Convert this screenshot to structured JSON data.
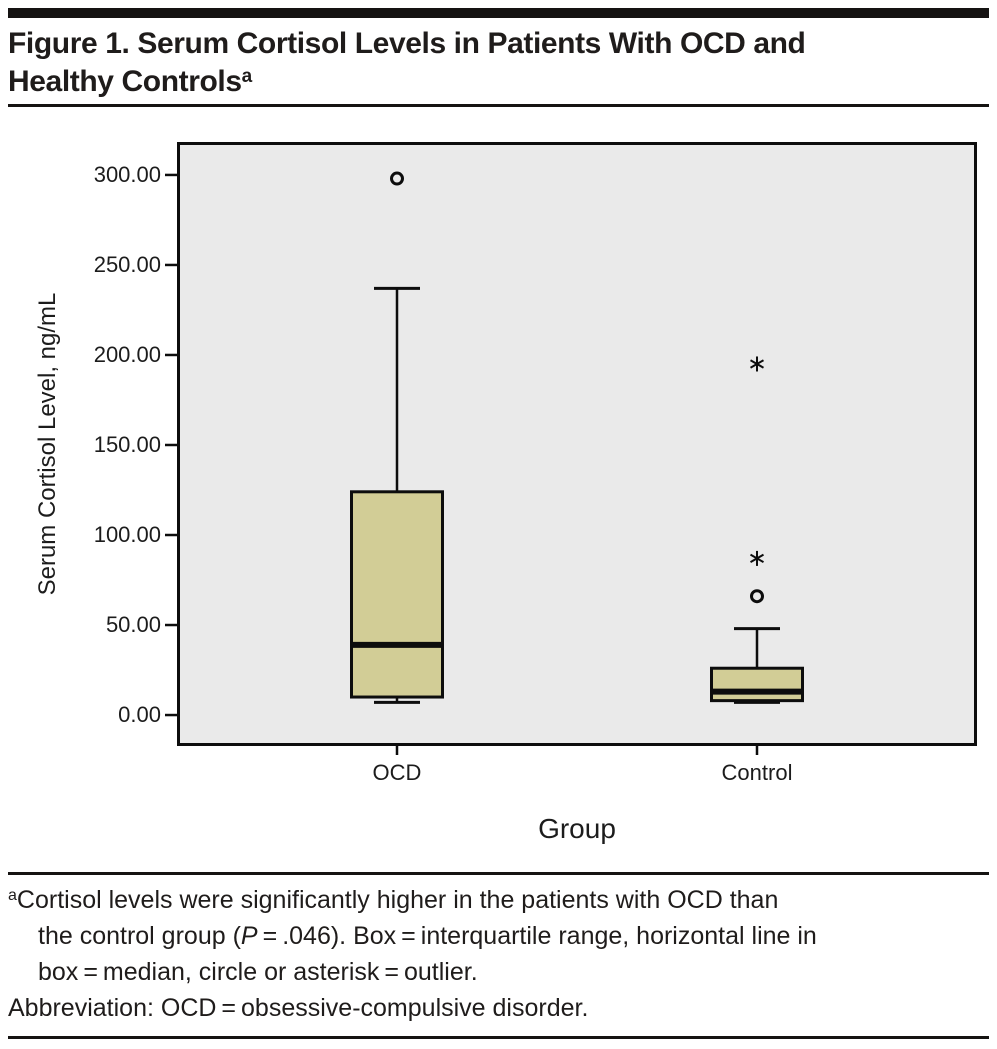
{
  "title": {
    "line1": "Figure 1. Serum Cortisol Levels in Patients With OCD and",
    "line2_text": "Healthy Controls",
    "line2_sup": "a"
  },
  "chart_data": {
    "type": "boxplot",
    "xlabel": "Group",
    "ylabel": "Serum Cortisol Level, ng/mL",
    "ylim": [
      -17.2,
      318.3
    ],
    "grid": "off",
    "yticks": [
      {
        "value": 300,
        "label": "300.00"
      },
      {
        "value": 250,
        "label": "250.00"
      },
      {
        "value": 200,
        "label": "200.00"
      },
      {
        "value": 150,
        "label": "150.00"
      },
      {
        "value": 100,
        "label": "100.00"
      },
      {
        "value": 50,
        "label": "50.00"
      },
      {
        "value": 0,
        "label": "0.00"
      }
    ],
    "categories": [
      "OCD",
      "Control"
    ],
    "series": [
      {
        "name": "OCD",
        "center_frac": 0.275,
        "whisker_low": 7,
        "q1": 10,
        "median": 39,
        "q3": 124,
        "whisker_high": 237,
        "outliers": [
          {
            "marker": "circle",
            "value": 298
          }
        ]
      },
      {
        "name": "Control",
        "center_frac": 0.725,
        "whisker_low": 7,
        "q1": 8,
        "median": 13,
        "q3": 26,
        "whisker_high": 48,
        "outliers": [
          {
            "marker": "asterisk",
            "value": 195
          },
          {
            "marker": "asterisk",
            "value": 87
          },
          {
            "marker": "circle",
            "value": 66
          }
        ]
      }
    ],
    "colors": {
      "box_fill": "#d2cd96",
      "stroke": "#0d0d0d",
      "plot_bg": "#eaeaea",
      "text": "#1c1c1c"
    }
  },
  "footnote": {
    "l1": {
      "sup": "a",
      "text": "Cortisol levels were significantly higher in the patients with OCD than"
    },
    "l2": {
      "pre": "the control group (",
      "italic": "P",
      "post": " = .046). Box = interquartile range, horizontal line in"
    },
    "l3": {
      "text": "box = median, circle or asterisk = outlier."
    },
    "l4": {
      "text": "Abbreviation: OCD = obsessive-compulsive disorder."
    }
  }
}
